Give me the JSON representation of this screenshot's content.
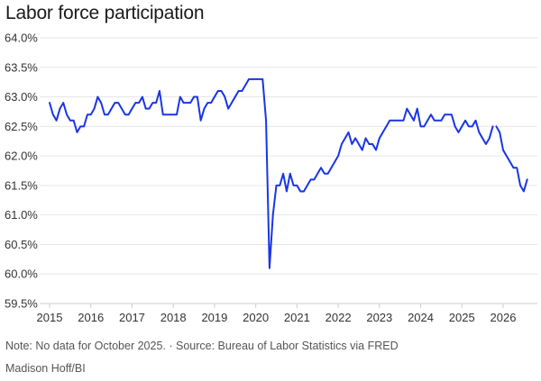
{
  "title": "Labor force participation",
  "note": "Note: No data for October 2025. · Source: Bureau of Labor Statistics via FRED",
  "credit": "Madison Hoff/BI",
  "colors": {
    "line": "#1a35e6",
    "grid": "#e6e6e6",
    "axis": "#cccccc"
  },
  "chart_data": {
    "type": "line",
    "title": "Labor force participation",
    "xlabel": "",
    "ylabel": "",
    "ylim": [
      59.5,
      64.0
    ],
    "xlim": [
      2015,
      2026.9
    ],
    "grid": "horizontal",
    "y_ticks": [
      59.5,
      60.0,
      60.5,
      61.0,
      61.5,
      62.0,
      62.5,
      63.0,
      63.5,
      64.0
    ],
    "y_tick_labels": [
      "59.5%",
      "60.0%",
      "60.5%",
      "61.0%",
      "61.5%",
      "62.0%",
      "62.5%",
      "63.0%",
      "63.5%",
      "64.0%"
    ],
    "x_ticks": [
      2015,
      2016,
      2017,
      2018,
      2019,
      2020,
      2021,
      2022,
      2023,
      2024,
      2025,
      2026
    ],
    "x_tick_labels": [
      "2015",
      "2016",
      "2017",
      "2018",
      "2019",
      "2020",
      "2021",
      "2022",
      "2023",
      "2024",
      "2025",
      "2026"
    ],
    "series": [
      {
        "segments": [
          {
            "x_start": "2015-01",
            "values": [
              62.9,
              62.7,
              62.6,
              62.8,
              62.9,
              62.7,
              62.6,
              62.6,
              62.4,
              62.5,
              62.5,
              62.7,
              62.7,
              62.8,
              63.0,
              62.9,
              62.7,
              62.7,
              62.8,
              62.9,
              62.9,
              62.8,
              62.7,
              62.7,
              62.8,
              62.9,
              62.9,
              63.0,
              62.8,
              62.8,
              62.9,
              62.9,
              63.1,
              62.7,
              62.7,
              62.7,
              62.7,
              62.7,
              63.0,
              62.9,
              62.9,
              62.9,
              63.0,
              63.0,
              62.6,
              62.8,
              62.9,
              62.9,
              63.0,
              63.1,
              63.1,
              63.0,
              62.8,
              62.9,
              63.0,
              63.1,
              63.1,
              63.2,
              63.3,
              63.3,
              63.3,
              63.3,
              63.3,
              62.6,
              60.1,
              61.0,
              61.5,
              61.5,
              61.7,
              61.4,
              61.7,
              61.5,
              61.5,
              61.4,
              61.4,
              61.5,
              61.6,
              61.6,
              61.7,
              61.8,
              61.7,
              61.7,
              61.8,
              61.9,
              62.0,
              62.2,
              62.3,
              62.4,
              62.2,
              62.3,
              62.2,
              62.1,
              62.3,
              62.2,
              62.2,
              62.1,
              62.3,
              62.4,
              62.5,
              62.6,
              62.6,
              62.6,
              62.6,
              62.6,
              62.8,
              62.7,
              62.6,
              62.8,
              62.5,
              62.5,
              62.6,
              62.7,
              62.6,
              62.6,
              62.6,
              62.7,
              62.7,
              62.7,
              62.5,
              62.4,
              62.5,
              62.6,
              62.5,
              62.5,
              62.6,
              62.4,
              62.3,
              62.2,
              62.3,
              62.5
            ]
          },
          {
            "x_start": "2025-11",
            "values": [
              62.5,
              62.4,
              62.1,
              62.0,
              61.9,
              61.8,
              61.8,
              61.5,
              61.4,
              61.6
            ]
          }
        ]
      }
    ]
  }
}
